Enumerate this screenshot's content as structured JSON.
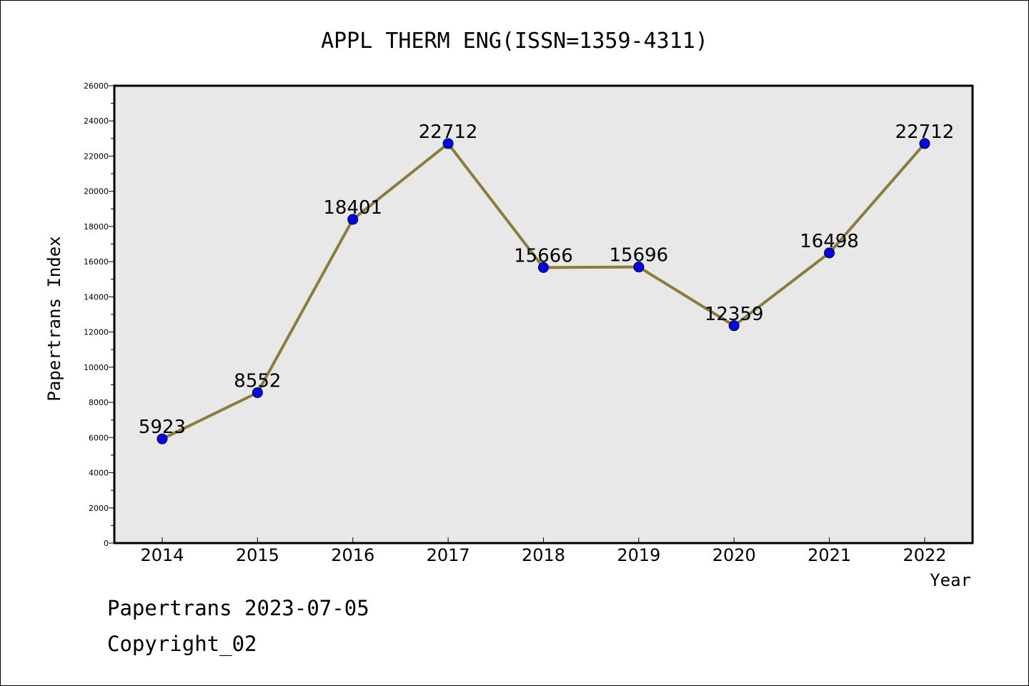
{
  "chart_data": {
    "type": "line",
    "title": "APPL THERM ENG(ISSN=1359-4311)",
    "xlabel": "Year",
    "ylabel": "Papertrans Index",
    "categories": [
      "2014",
      "2015",
      "2016",
      "2017",
      "2018",
      "2019",
      "2020",
      "2021",
      "2022"
    ],
    "values": [
      5923,
      8552,
      18401,
      22712,
      15666,
      15696,
      12359,
      16498,
      22712
    ],
    "data_labels": [
      "5923",
      "8552",
      "18401",
      "22712",
      "15666",
      "15696",
      "12359",
      "16498",
      "22712"
    ],
    "ylim": [
      0,
      26000
    ],
    "y_ticks": [
      "0",
      "2000",
      "4000",
      "6000",
      "8000",
      "10000",
      "12000",
      "14000",
      "16000",
      "18000",
      "20000",
      "22000",
      "24000",
      "26000"
    ],
    "grid": false,
    "legend": "none",
    "colors": {
      "line": "#8B7D3A",
      "marker": "#0000FF",
      "plot_background": "#E8E8E8"
    }
  },
  "footer": {
    "date_line": "Papertrans 2023-07-05",
    "copyright_line": "Copyright_02"
  }
}
